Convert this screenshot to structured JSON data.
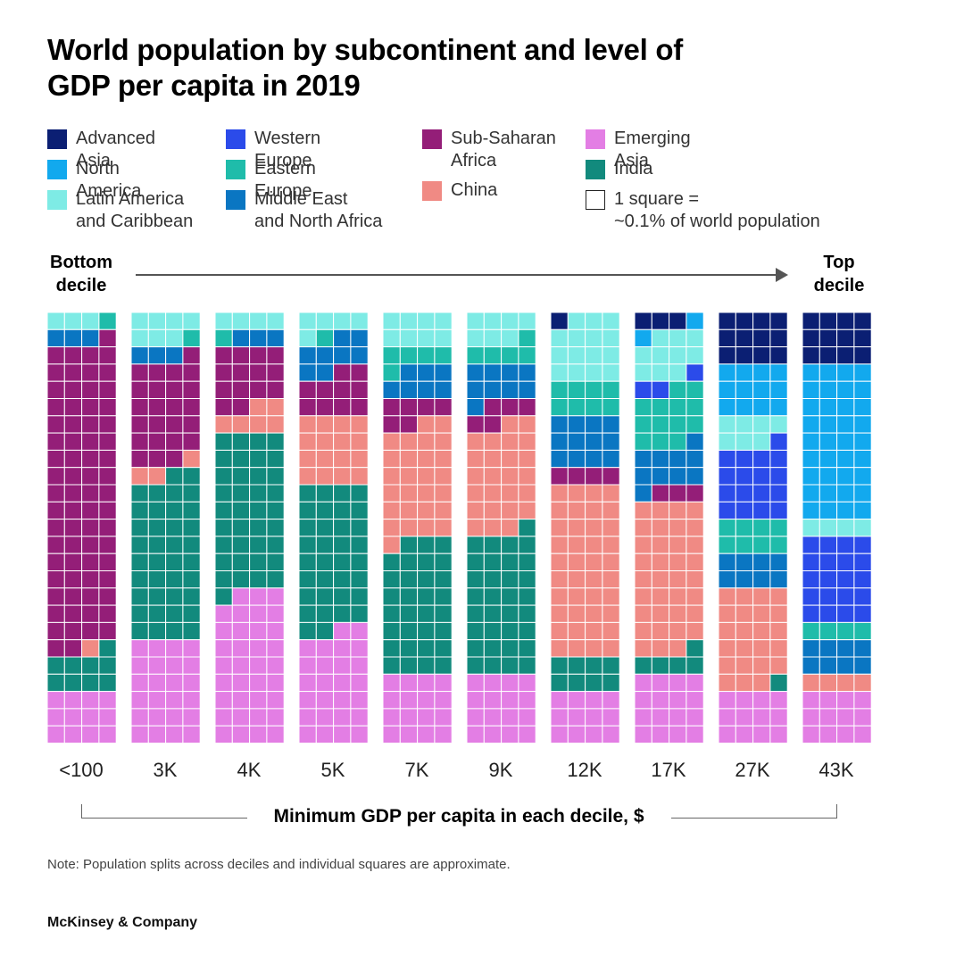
{
  "title": "World population by subcontinent and level of GDP per capita in 2019",
  "legend": [
    {
      "key": "aa",
      "label": "Advanced Asia",
      "color": "#0B1F73"
    },
    {
      "key": "na",
      "label": "North America",
      "color": "#12A9EE"
    },
    {
      "key": "la",
      "label": "Latin America\nand Caribbean",
      "color": "#7EEBE5"
    },
    {
      "key": "we",
      "label": "Western Europe",
      "color": "#2B4BEA"
    },
    {
      "key": "ee",
      "label": "Eastern Europe",
      "color": "#1FBCAA"
    },
    {
      "key": "me",
      "label": "Middle East\nand North Africa",
      "color": "#0A76C2"
    },
    {
      "key": "ssa",
      "label": "Sub-Saharan\nAfrica",
      "color": "#941E78"
    },
    {
      "key": "ch",
      "label": "China",
      "color": "#F08A84"
    },
    {
      "key": "ea",
      "label": "Emerging Asia",
      "color": "#E37EE4"
    },
    {
      "key": "in",
      "label": "India",
      "color": "#128A7D"
    }
  ],
  "square_note": "1 square =\n~0.1% of world population",
  "bottom_label": "Bottom\ndecile",
  "top_label": "Top\ndecile",
  "x_axis_label": "Minimum GDP per capita in each decile, $",
  "note": "Note: Population splits across deciles and individual squares are approximate.",
  "brand": "McKinsey & Company",
  "chart_data": {
    "type": "waffle",
    "unit": "1 square ≈ 0.1% of world population",
    "categories": [
      "<100",
      "3K",
      "4K",
      "5K",
      "7K",
      "9K",
      "12K",
      "17K",
      "27K",
      "43K"
    ],
    "series_order": [
      "Advanced Asia",
      "North America",
      "Latin America and Caribbean",
      "Western Europe",
      "Eastern Europe",
      "Middle East and North Africa",
      "Sub-Saharan Africa",
      "China",
      "India",
      "Emerging Asia"
    ],
    "squares_per_decile": 100,
    "squares": [
      {
        "decile": "<100",
        "Latin America and Caribbean": 3,
        "Sub-Saharan Africa": 71,
        "Eastern Europe": 1,
        "Middle East and North Africa": 3,
        "China": 1,
        "India": 9,
        "Emerging Asia": 12
      },
      {
        "decile": "3K",
        "Latin America and Caribbean": 7,
        "Middle East and North Africa": 3,
        "Eastern Europe": 1,
        "Sub-Saharan Africa": 24,
        "China": 3,
        "India": 38,
        "Emerging Asia": 24
      },
      {
        "decile": "4K",
        "Latin America and Caribbean": 4,
        "Middle East and North Africa": 3,
        "Eastern Europe": 1,
        "Sub-Saharan Africa": 14,
        "China": 6,
        "India": 37,
        "Emerging Asia": 35
      },
      {
        "decile": "5K",
        "Latin America and Caribbean": 5,
        "Middle East and North Africa": 8,
        "Eastern Europe": 1,
        "Sub-Saharan Africa": 10,
        "China": 16,
        "India": 34,
        "Emerging Asia": 26
      },
      {
        "decile": "7K",
        "Latin America and Caribbean": 8,
        "Eastern Europe": 5,
        "Middle East and North Africa": 7,
        "Sub-Saharan Africa": 6,
        "China": 27,
        "India": 31,
        "Emerging Asia": 16
      },
      {
        "decile": "9K",
        "Latin America and Caribbean": 7,
        "Eastern Europe": 5,
        "Middle East and North Africa": 9,
        "Sub-Saharan Africa": 5,
        "China": 25,
        "India": 33,
        "Emerging Asia": 16
      },
      {
        "decile": "12K",
        "Advanced Asia": 1,
        "Latin America and Caribbean": 15,
        "Eastern Europe": 8,
        "Middle East and North Africa": 12,
        "Sub-Saharan Africa": 4,
        "China": 40,
        "India": 8,
        "Emerging Asia": 12
      },
      {
        "decile": "17K",
        "Advanced Asia": 3,
        "North America": 2,
        "Latin America and Caribbean": 10,
        "Western Europe": 3,
        "Eastern Europe": 13,
        "Middle East and North Africa": 10,
        "Sub-Saharan Africa": 3,
        "China": 35,
        "India": 5,
        "Emerging Asia": 16
      },
      {
        "decile": "27K",
        "Advanced Asia": 12,
        "North America": 12,
        "Latin America and Caribbean": 7,
        "Western Europe": 17,
        "Eastern Europe": 8,
        "Middle East and North Africa": 8,
        "China": 23,
        "India": 1,
        "Emerging Asia": 12
      },
      {
        "decile": "43K",
        "Advanced Asia": 12,
        "North America": 36,
        "Latin America and Caribbean": 4,
        "Western Europe": 20,
        "Eastern Europe": 4,
        "Middle East and North Africa": 8,
        "China": 4,
        "Emerging Asia": 12
      }
    ]
  }
}
